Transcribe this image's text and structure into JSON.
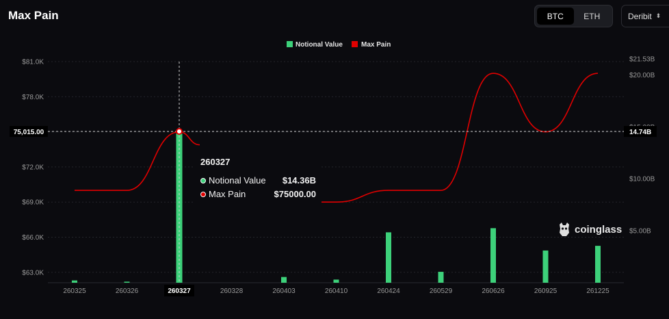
{
  "header": {
    "title": "Max Pain",
    "coin_tabs": [
      {
        "label": "BTC",
        "active": true
      },
      {
        "label": "ETH",
        "active": false
      }
    ],
    "exchange_select": "Deribit"
  },
  "legend": [
    {
      "label": "Notional Value",
      "color": "#3dd17a"
    },
    {
      "label": "Max Pain",
      "color": "#e10000"
    }
  ],
  "tooltip": {
    "title": "260327",
    "rows": [
      {
        "label": "Notional Value",
        "value": "$14.36B",
        "color": "#3dd17a"
      },
      {
        "label": "Max Pain",
        "value": "$75000.00",
        "color": "#e10000"
      }
    ]
  },
  "crosshair": {
    "left_label": "75,015.00",
    "right_label": "14.74B",
    "x_label": "260327"
  },
  "watermark": "coinglass",
  "chart_data": {
    "type": "bar",
    "categories": [
      "260325",
      "260326",
      "260327",
      "260328",
      "260403",
      "260410",
      "260424",
      "260529",
      "260626",
      "260925",
      "261225"
    ],
    "series": [
      {
        "name": "Notional Value",
        "type": "bar",
        "axis": "right",
        "unit": "B USD",
        "values": [
          0.22,
          0.1,
          14.36,
          0,
          0.55,
          0.3,
          4.85,
          1.05,
          5.25,
          3.1,
          3.55
        ]
      },
      {
        "name": "Max Pain",
        "type": "line",
        "axis": "left",
        "unit": "USD",
        "values": [
          70000,
          70000,
          75000,
          null,
          null,
          69000,
          70000,
          70000,
          80000,
          75000,
          80000
        ]
      }
    ],
    "y_left": {
      "ticks": [
        "$63.0K",
        "$66.0K",
        "$69.0K",
        "$72.0K",
        "$75.0K",
        "$78.0K",
        "$81.0K"
      ],
      "min": 61600,
      "max": 81000
    },
    "y_right": {
      "ticks": [
        "$5.00B",
        "$10.00B",
        "$15.00B",
        "$20.00B",
        "$21.53B"
      ],
      "min": 0,
      "max": 21.53
    },
    "grid": true,
    "legend_position": "top-center"
  }
}
